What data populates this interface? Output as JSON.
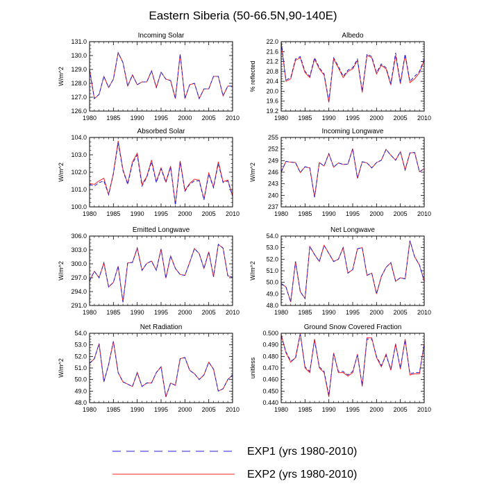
{
  "title": "Eastern Siberia (50-66.5N,90-140E)",
  "colors": {
    "exp1": "#1f1fcc",
    "exp2": "#ff1f1f"
  },
  "legend": {
    "exp1": "EXP1 (yrs 1980-2010)",
    "exp2": "EXP2 (yrs 1980-2010)"
  },
  "x_ticks": [
    "1980",
    "1985",
    "1990",
    "1995",
    "2000",
    "2005",
    "2010"
  ],
  "chart_data": [
    {
      "type": "line",
      "title": "Incoming Solar",
      "ylabel": "W/m^2",
      "ylim": [
        126.0,
        131.0
      ],
      "yticks": [
        "126.0",
        "127.0",
        "128.0",
        "129.0",
        "130.0",
        "131.0"
      ],
      "xlim": [
        1980,
        2010
      ],
      "series": [
        {
          "name": "EXP1",
          "x_start": 1980,
          "values": [
            129.0,
            126.9,
            127.2,
            128.5,
            127.7,
            128.3,
            130.2,
            129.5,
            127.8,
            128.6,
            127.9,
            128.1,
            128.1,
            128.9,
            127.7,
            128.8,
            128.3,
            128.2,
            126.9,
            130.1,
            126.9,
            127.9,
            128.0,
            126.9,
            127.6,
            127.6,
            128.5,
            128.5,
            127.1,
            127.8,
            127.8
          ]
        },
        {
          "name": "EXP2",
          "x_start": 1980,
          "values": [
            129.0,
            126.9,
            127.2,
            128.5,
            127.7,
            128.3,
            130.2,
            129.5,
            127.8,
            128.6,
            127.9,
            128.1,
            128.1,
            128.9,
            127.7,
            128.8,
            128.3,
            128.2,
            126.9,
            130.1,
            126.9,
            127.9,
            128.0,
            126.9,
            127.6,
            127.6,
            128.5,
            128.5,
            127.1,
            127.8,
            127.8
          ]
        }
      ]
    },
    {
      "type": "line",
      "title": "Albedo",
      "ylabel": "% reflected",
      "ylim": [
        19.2,
        22.0
      ],
      "yticks": [
        "19.2",
        "19.6",
        "20.0",
        "20.4",
        "20.8",
        "21.2",
        "21.6",
        "22.0"
      ],
      "xlim": [
        1980,
        2010
      ],
      "series": [
        {
          "name": "EXP1",
          "x_start": 1980,
          "values": [
            22.0,
            20.45,
            20.55,
            21.3,
            21.4,
            20.8,
            20.6,
            21.35,
            20.95,
            20.7,
            19.6,
            21.35,
            21.0,
            20.6,
            20.85,
            20.95,
            21.3,
            20.0,
            21.5,
            21.4,
            20.75,
            21.1,
            20.95,
            20.3,
            21.55,
            20.35,
            21.5,
            20.4,
            20.6,
            20.8,
            21.3
          ]
        },
        {
          "name": "EXP2",
          "x_start": 1980,
          "values": [
            21.95,
            20.4,
            20.5,
            21.25,
            21.35,
            20.75,
            20.55,
            21.3,
            20.9,
            20.65,
            19.55,
            21.3,
            20.95,
            20.55,
            20.8,
            20.9,
            21.25,
            19.95,
            21.45,
            21.35,
            20.7,
            21.05,
            20.9,
            20.25,
            21.45,
            20.3,
            21.45,
            20.35,
            20.5,
            20.75,
            21.25
          ]
        }
      ]
    },
    {
      "type": "line",
      "title": "Absorbed Solar",
      "ylabel": "W/m^2",
      "ylim": [
        100.0,
        104.0
      ],
      "yticks": [
        "100.0",
        "101.0",
        "102.0",
        "103.0",
        "104.0"
      ],
      "xlim": [
        1980,
        2010
      ],
      "series": [
        {
          "name": "EXP1",
          "x_start": 1980,
          "values": [
            101.3,
            101.2,
            101.4,
            101.5,
            100.7,
            101.9,
            103.7,
            102.1,
            101.3,
            102.5,
            103.0,
            101.2,
            101.7,
            102.6,
            101.4,
            102.2,
            101.4,
            102.3,
            100.1,
            102.6,
            100.9,
            101.3,
            101.5,
            101.5,
            100.4,
            101.9,
            101.1,
            102.5,
            101.4,
            101.5,
            100.6
          ]
        },
        {
          "name": "EXP2",
          "x_start": 1980,
          "values": [
            101.35,
            101.3,
            101.5,
            101.65,
            100.7,
            101.95,
            103.8,
            102.15,
            101.35,
            102.6,
            103.1,
            101.3,
            101.75,
            102.7,
            101.45,
            102.25,
            101.45,
            102.35,
            100.15,
            102.65,
            100.95,
            101.35,
            101.6,
            101.55,
            100.45,
            101.95,
            101.15,
            102.6,
            101.45,
            101.55,
            100.65
          ]
        }
      ]
    },
    {
      "type": "line",
      "title": "Incoming Longwave",
      "ylabel": "W/m^2",
      "ylim": [
        237,
        255
      ],
      "yticks": [
        "237",
        "240",
        "243",
        "246",
        "249",
        "252",
        "255"
      ],
      "xlim": [
        1980,
        2010
      ],
      "series": [
        {
          "name": "EXP1",
          "x_start": 1980,
          "values": [
            246.0,
            248.8,
            248.6,
            248.5,
            245.9,
            247.4,
            247.1,
            239.5,
            248.5,
            247.6,
            250.8,
            247.3,
            248.4,
            248.0,
            248.1,
            252.1,
            244.4,
            248.7,
            248.4,
            247.1,
            248.5,
            249.1,
            251.9,
            250.4,
            249.1,
            251.3,
            246.6,
            251.0,
            251.1,
            246.1,
            246.9
          ]
        },
        {
          "name": "EXP2",
          "x_start": 1980,
          "values": [
            246.0,
            248.8,
            248.6,
            248.5,
            245.9,
            247.4,
            247.1,
            239.5,
            248.5,
            247.6,
            250.8,
            247.3,
            248.4,
            248.0,
            248.1,
            252.1,
            244.4,
            248.7,
            248.4,
            247.1,
            248.5,
            249.1,
            251.9,
            250.4,
            249.1,
            251.3,
            246.6,
            251.0,
            251.1,
            246.1,
            246.9
          ]
        }
      ]
    },
    {
      "type": "line",
      "title": "Emitted Longwave",
      "ylabel": "W/m^2",
      "ylim": [
        291.0,
        306.0
      ],
      "yticks": [
        "291.0",
        "294.0",
        "297.0",
        "300.0",
        "303.0",
        "306.0"
      ],
      "xlim": [
        1980,
        2010
      ],
      "series": [
        {
          "name": "EXP1",
          "x_start": 1980,
          "values": [
            296.3,
            298.4,
            297.0,
            300.2,
            295.0,
            296.0,
            299.5,
            291.7,
            300.2,
            300.3,
            303.4,
            298.6,
            300.1,
            300.6,
            298.6,
            303.2,
            296.9,
            301.7,
            299.0,
            297.7,
            297.5,
            300.3,
            303.3,
            302.2,
            299.0,
            302.6,
            297.2,
            304.2,
            303.4,
            297.4,
            297.1
          ]
        },
        {
          "name": "EXP2",
          "x_start": 1980,
          "values": [
            296.3,
            298.4,
            297.0,
            300.2,
            295.0,
            296.0,
            299.5,
            291.7,
            300.2,
            300.3,
            303.4,
            298.6,
            300.1,
            300.6,
            298.6,
            303.2,
            296.9,
            301.7,
            299.0,
            297.7,
            297.5,
            300.3,
            303.3,
            302.2,
            299.0,
            302.6,
            297.2,
            304.2,
            303.4,
            297.4,
            297.1
          ]
        }
      ]
    },
    {
      "type": "line",
      "title": "Net Longwave",
      "ylabel": "W/m^2",
      "ylim": [
        48.0,
        54.0
      ],
      "yticks": [
        "48.0",
        "49.0",
        "50.0",
        "51.0",
        "52.0",
        "53.0",
        "54.0"
      ],
      "xlim": [
        1980,
        2010
      ],
      "series": [
        {
          "name": "EXP1",
          "x_start": 1980,
          "values": [
            49.9,
            49.6,
            48.3,
            51.8,
            49.2,
            48.6,
            53.1,
            52.4,
            51.8,
            53.2,
            52.5,
            51.8,
            52.0,
            53.0,
            50.8,
            51.1,
            52.9,
            53.0,
            50.6,
            50.8,
            49.0,
            50.5,
            51.3,
            51.7,
            50.1,
            50.4,
            50.3,
            53.6,
            52.2,
            51.5,
            50.1
          ]
        },
        {
          "name": "EXP2",
          "x_start": 1980,
          "values": [
            49.9,
            49.6,
            48.3,
            51.8,
            49.2,
            48.6,
            53.1,
            52.4,
            51.8,
            53.2,
            52.5,
            51.8,
            52.0,
            53.0,
            50.8,
            51.1,
            52.9,
            53.0,
            50.6,
            50.8,
            49.0,
            50.5,
            51.3,
            51.7,
            50.1,
            50.4,
            50.3,
            53.6,
            52.2,
            51.5,
            50.1
          ]
        }
      ]
    },
    {
      "type": "line",
      "title": "Net Radiation",
      "ylabel": "W/m^2",
      "ylim": [
        48.0,
        54.0
      ],
      "yticks": [
        "48.0",
        "49.0",
        "50.0",
        "51.0",
        "52.0",
        "53.0",
        "54.0"
      ],
      "xlim": [
        1980,
        2010
      ],
      "series": [
        {
          "name": "EXP1",
          "x_start": 1980,
          "values": [
            51.4,
            51.8,
            53.1,
            49.8,
            51.3,
            53.3,
            50.6,
            49.8,
            49.6,
            49.4,
            50.6,
            49.4,
            49.7,
            49.7,
            50.6,
            51.1,
            48.5,
            49.7,
            49.5,
            51.8,
            51.9,
            50.8,
            50.5,
            50.0,
            50.4,
            51.5,
            50.9,
            49.0,
            49.2,
            50.0,
            50.4
          ]
        },
        {
          "name": "EXP2",
          "x_start": 1980,
          "values": [
            51.4,
            51.8,
            53.1,
            49.8,
            51.3,
            53.3,
            50.6,
            49.8,
            49.6,
            49.4,
            50.6,
            49.4,
            49.7,
            49.7,
            50.6,
            51.1,
            48.5,
            49.7,
            49.5,
            51.8,
            51.9,
            50.8,
            50.5,
            50.0,
            50.4,
            51.5,
            50.9,
            49.0,
            49.2,
            50.0,
            50.4
          ]
        }
      ]
    },
    {
      "type": "line",
      "title": "Ground Snow Covered Fraction",
      "ylabel": "unitless",
      "ylim": [
        0.44,
        0.5
      ],
      "yticks": [
        "0.440",
        "0.450",
        "0.460",
        "0.470",
        "0.480",
        "0.490",
        "0.500"
      ],
      "xlim": [
        1980,
        2010
      ],
      "series": [
        {
          "name": "EXP1",
          "x_start": 1980,
          "values": [
            0.498,
            0.484,
            0.476,
            0.478,
            0.499,
            0.471,
            0.467,
            0.494,
            0.471,
            0.467,
            0.446,
            0.482,
            0.467,
            0.467,
            0.464,
            0.467,
            0.481,
            0.455,
            0.495,
            0.495,
            0.48,
            0.472,
            0.481,
            0.469,
            0.49,
            0.47,
            0.494,
            0.465,
            0.466,
            0.466,
            0.49
          ]
        },
        {
          "name": "EXP2",
          "x_start": 1980,
          "values": [
            0.499,
            0.483,
            0.475,
            0.479,
            0.5,
            0.47,
            0.466,
            0.495,
            0.47,
            0.466,
            0.445,
            0.483,
            0.466,
            0.466,
            0.463,
            0.466,
            0.482,
            0.454,
            0.496,
            0.496,
            0.479,
            0.471,
            0.482,
            0.468,
            0.491,
            0.469,
            0.495,
            0.464,
            0.465,
            0.465,
            0.491
          ]
        }
      ]
    }
  ]
}
